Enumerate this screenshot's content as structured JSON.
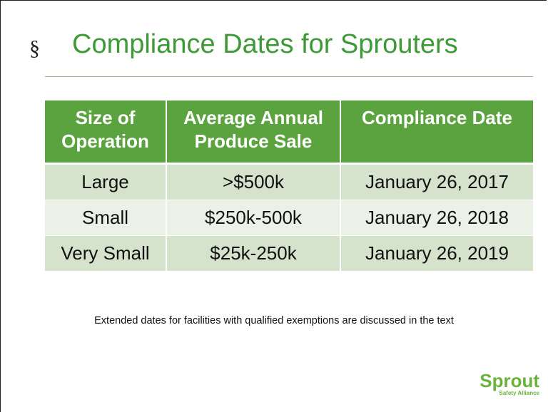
{
  "slide": {
    "bullet": "§",
    "title": "Compliance Dates for Sprouters",
    "table": {
      "header": [
        "Size of Operation",
        "Average Annual Produce Sale",
        "Compliance Date"
      ],
      "rows": [
        [
          "Large",
          ">$500k",
          "January 26, 2017"
        ],
        [
          "Small",
          "$250k-500k",
          "January 26, 2018"
        ],
        [
          "Very Small",
          "$25k-250k",
          "January 26, 2019"
        ]
      ]
    },
    "note": "Extended dates for facilities with qualified exemptions are discussed in the text",
    "logo": {
      "name": "Sprout",
      "subtitle": "Safety Alliance"
    }
  }
}
